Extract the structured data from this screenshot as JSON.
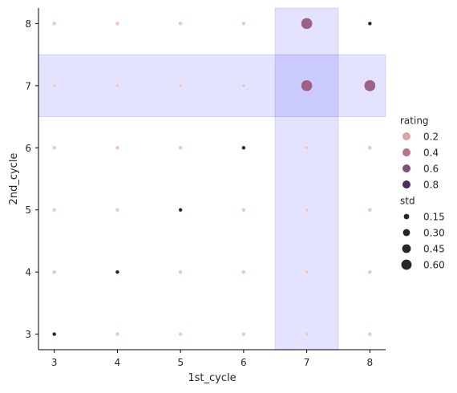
{
  "chart_data": {
    "type": "scatter",
    "xlabel": "1st_cycle",
    "ylabel": "2nd_cycle",
    "xlim": [
      2.75,
      8.25
    ],
    "ylim": [
      2.75,
      8.25
    ],
    "xticks": [
      3,
      4,
      5,
      6,
      7,
      8
    ],
    "yticks": [
      3,
      4,
      5,
      6,
      7,
      8
    ],
    "grid": false,
    "legend_position": "right",
    "highlights": [
      {
        "axis": "x",
        "from": 6.5,
        "to": 7.5,
        "color": "#0000ff",
        "alpha": 0.11
      },
      {
        "axis": "y",
        "from": 6.5,
        "to": 7.5,
        "color": "#0000ff",
        "alpha": 0.11
      }
    ],
    "hue": {
      "title": "rating",
      "levels": [
        {
          "label": "0.2",
          "value": 0.2,
          "color": "#dea3a8"
        },
        {
          "label": "0.4",
          "value": 0.4,
          "color": "#b5738e"
        },
        {
          "label": "0.6",
          "value": 0.6,
          "color": "#844d80"
        },
        {
          "label": "0.8",
          "value": 0.8,
          "color": "#4d2b5e"
        }
      ],
      "min_color": "#ebc7c2",
      "max_color": "#2b1e3e"
    },
    "size": {
      "title": "std",
      "levels": [
        {
          "label": "0.15",
          "value": 0.15
        },
        {
          "label": "0.30",
          "value": 0.3
        },
        {
          "label": "0.45",
          "value": 0.45
        },
        {
          "label": "0.60",
          "value": 0.6
        }
      ]
    },
    "points": [
      {
        "x": 3,
        "y": 3,
        "rating": 1.0,
        "std": 0.0
      },
      {
        "x": 4,
        "y": 3,
        "rating": 0.0,
        "std": 0.0
      },
      {
        "x": 5,
        "y": 3,
        "rating": 0.0,
        "std": 0.0
      },
      {
        "x": 6,
        "y": 3,
        "rating": 0.0,
        "std": 0.0
      },
      {
        "x": 7,
        "y": 3,
        "rating": 0.0,
        "std": 0.0
      },
      {
        "x": 8,
        "y": 3,
        "rating": 0.0,
        "std": 0.0
      },
      {
        "x": 3,
        "y": 4,
        "rating": 0.0,
        "std": 0.0
      },
      {
        "x": 4,
        "y": 4,
        "rating": 1.0,
        "std": 0.0
      },
      {
        "x": 5,
        "y": 4,
        "rating": 0.0,
        "std": 0.0
      },
      {
        "x": 6,
        "y": 4,
        "rating": 0.0,
        "std": 0.0
      },
      {
        "x": 7,
        "y": 4,
        "rating": 0.0,
        "std": 0.0
      },
      {
        "x": 8,
        "y": 4,
        "rating": 0.0,
        "std": 0.0
      },
      {
        "x": 3,
        "y": 5,
        "rating": 0.0,
        "std": 0.0
      },
      {
        "x": 4,
        "y": 5,
        "rating": 0.0,
        "std": 0.0
      },
      {
        "x": 5,
        "y": 5,
        "rating": 1.0,
        "std": 0.0
      },
      {
        "x": 6,
        "y": 5,
        "rating": 0.0,
        "std": 0.0
      },
      {
        "x": 7,
        "y": 5,
        "rating": 0.0,
        "std": 0.0
      },
      {
        "x": 8,
        "y": 5,
        "rating": 0.0,
        "std": 0.0
      },
      {
        "x": 3,
        "y": 6,
        "rating": 0.0,
        "std": 0.0
      },
      {
        "x": 4,
        "y": 6,
        "rating": 0.0,
        "std": 0.0
      },
      {
        "x": 5,
        "y": 6,
        "rating": 0.0,
        "std": 0.0
      },
      {
        "x": 6,
        "y": 6,
        "rating": 1.0,
        "std": 0.0
      },
      {
        "x": 7,
        "y": 6,
        "rating": 0.0,
        "std": 0.0
      },
      {
        "x": 8,
        "y": 6,
        "rating": 0.0,
        "std": 0.0
      },
      {
        "x": 3,
        "y": 7,
        "rating": 0.0,
        "std": 0.0
      },
      {
        "x": 4,
        "y": 7,
        "rating": 0.0,
        "std": 0.0
      },
      {
        "x": 5,
        "y": 7,
        "rating": 0.0,
        "std": 0.0
      },
      {
        "x": 6,
        "y": 7,
        "rating": 0.0,
        "std": 0.0
      },
      {
        "x": 7,
        "y": 7,
        "rating": 0.5,
        "std": 0.71
      },
      {
        "x": 8,
        "y": 7,
        "rating": 0.5,
        "std": 0.71
      },
      {
        "x": 3,
        "y": 8,
        "rating": 0.0,
        "std": 0.0
      },
      {
        "x": 4,
        "y": 8,
        "rating": 0.0,
        "std": 0.0
      },
      {
        "x": 5,
        "y": 8,
        "rating": 0.0,
        "std": 0.0
      },
      {
        "x": 6,
        "y": 8,
        "rating": 0.0,
        "std": 0.0
      },
      {
        "x": 7,
        "y": 8,
        "rating": 0.5,
        "std": 0.71
      },
      {
        "x": 8,
        "y": 8,
        "rating": 1.0,
        "std": 0.0
      }
    ]
  }
}
